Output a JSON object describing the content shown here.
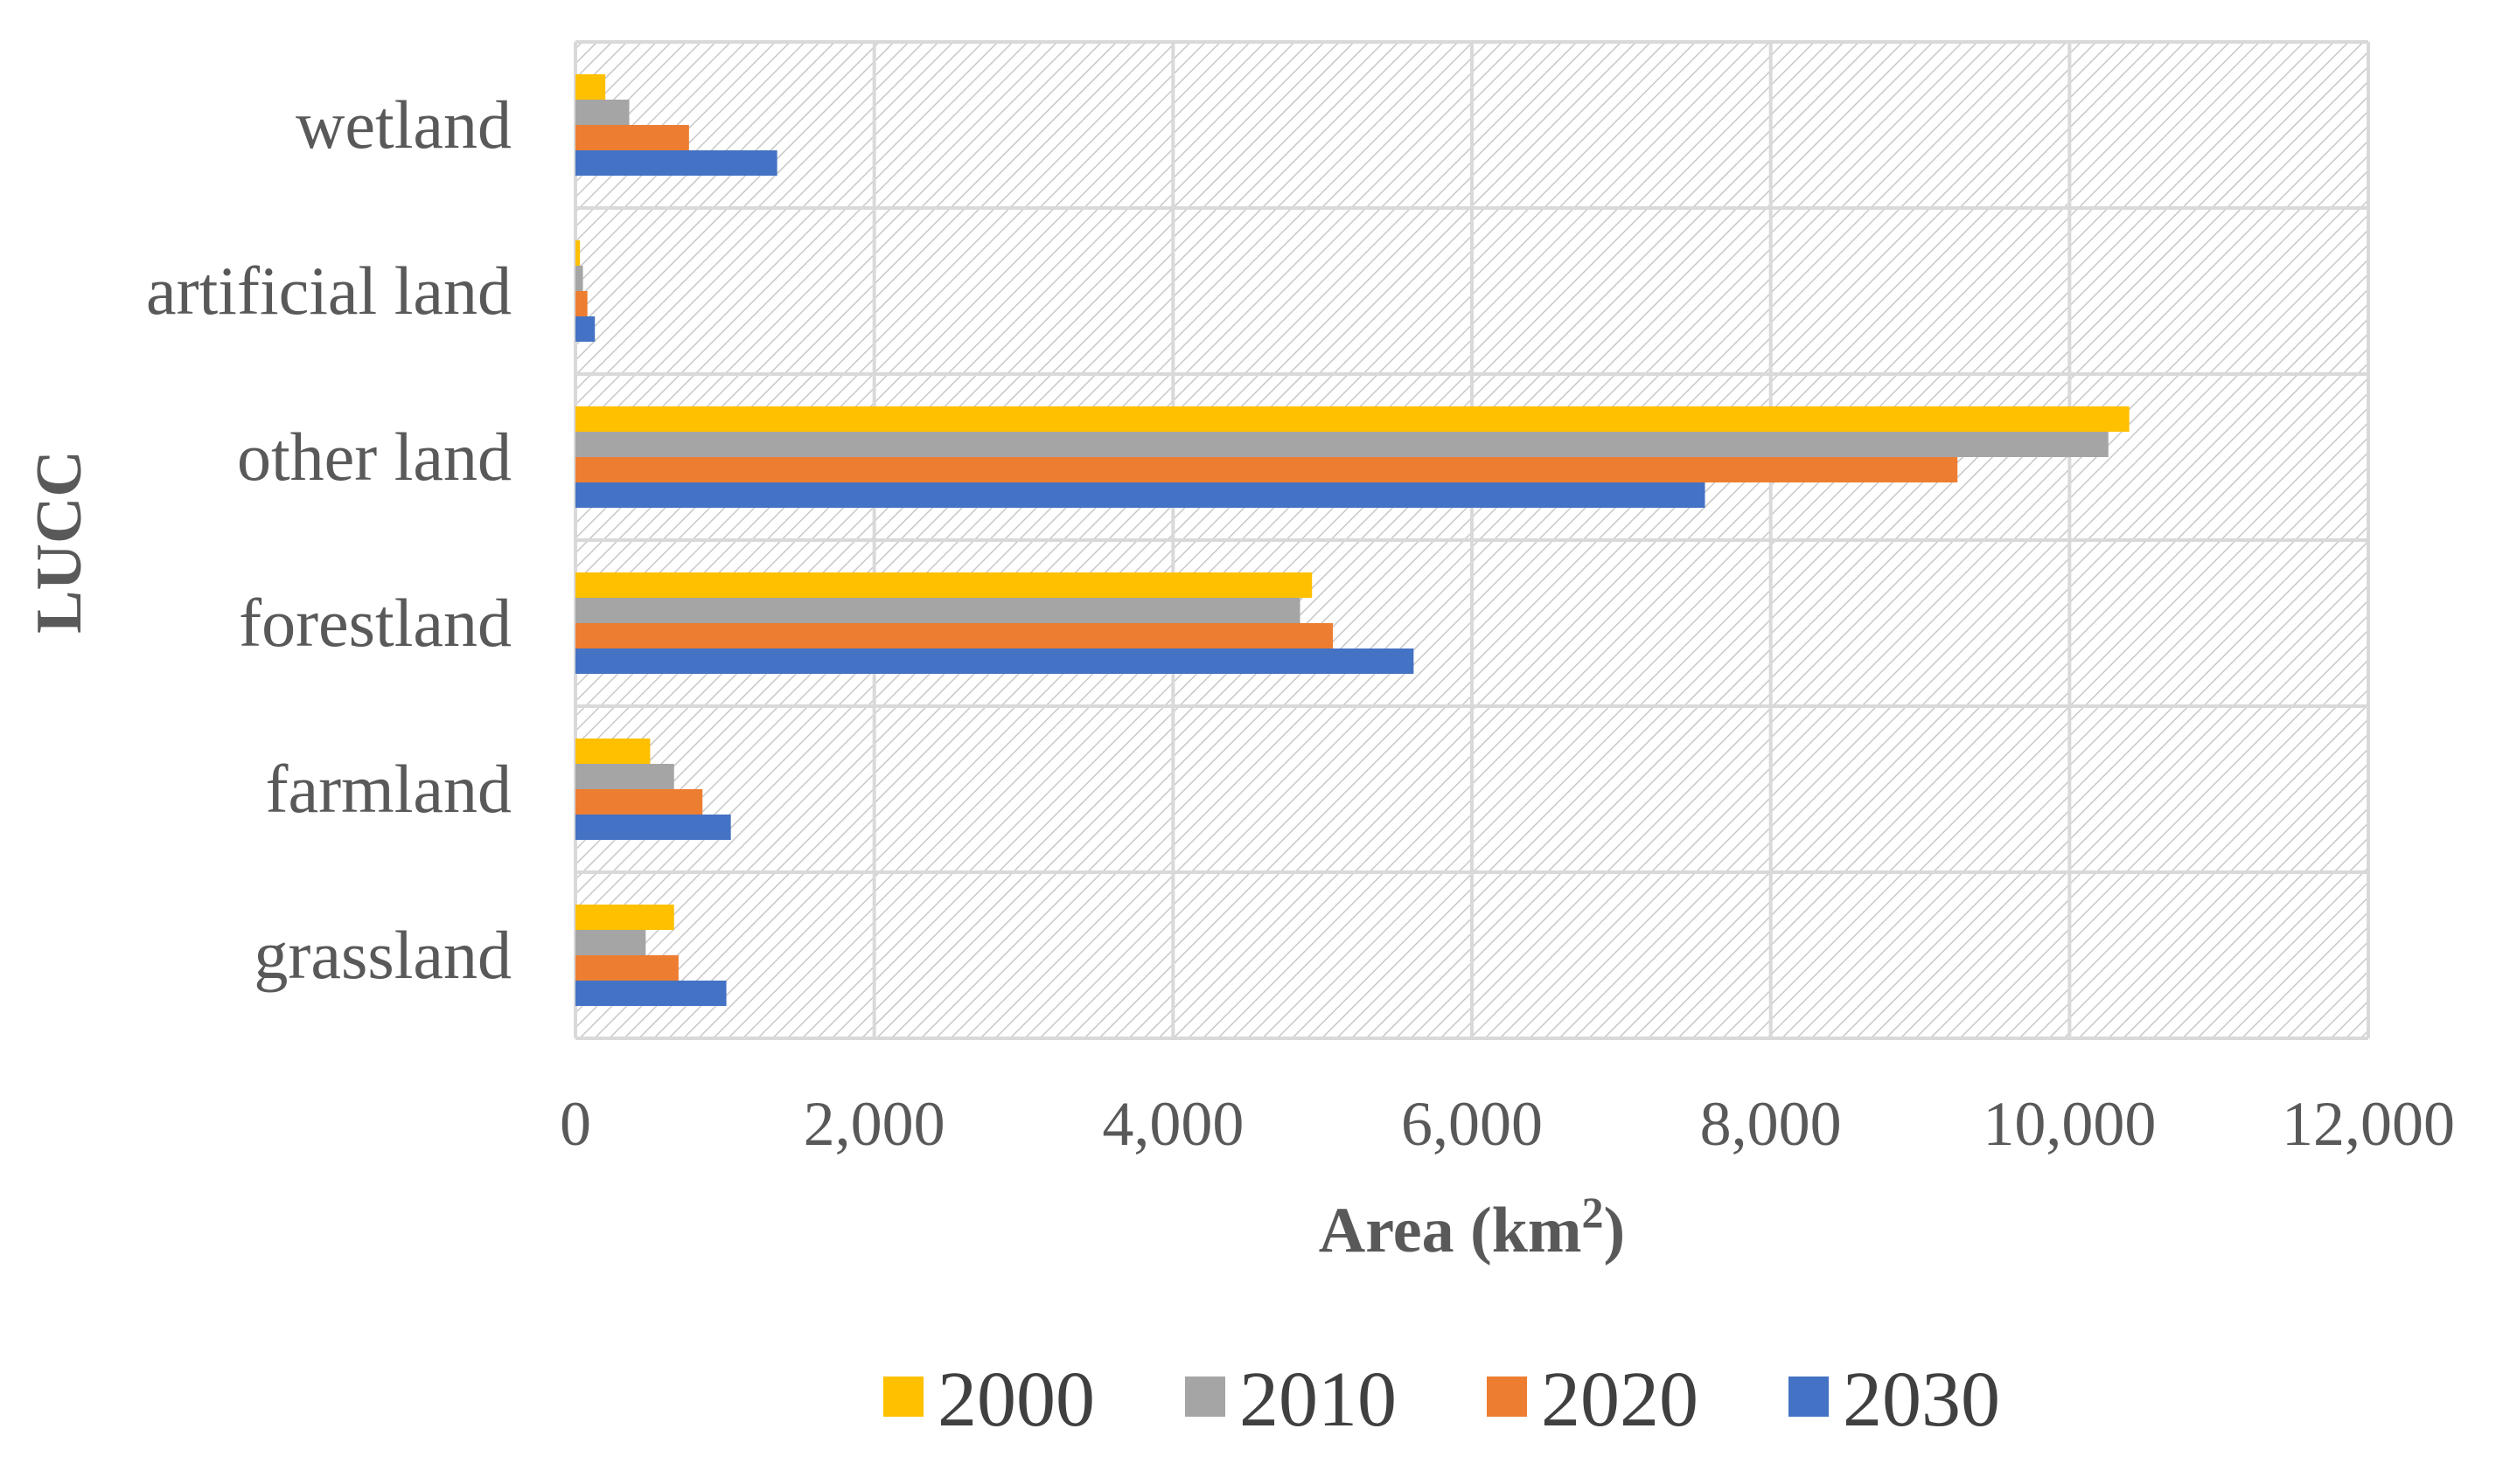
{
  "chart_data": {
    "type": "bar",
    "orientation": "horizontal",
    "title": "",
    "xlabel": "Area (km",
    "xlabel_superscript": "2",
    "xlabel_suffix": ")",
    "ylabel": "LUCC",
    "xlim": [
      0,
      12000
    ],
    "xticks": [
      0,
      2000,
      4000,
      6000,
      8000,
      10000,
      12000
    ],
    "xtick_labels": [
      "0",
      "2,000",
      "4,000",
      "6,000",
      "8,000",
      "10,000",
      "12,000"
    ],
    "grid": true,
    "legend_position": "bottom",
    "categories": [
      "wetland",
      "artificial land",
      "other land",
      "forestland",
      "farmland",
      "grassland"
    ],
    "series": [
      {
        "name": "2000",
        "color": "#FFC000",
        "values": [
          200,
          30,
          10400,
          4930,
          500,
          660
        ]
      },
      {
        "name": "2010",
        "color": "#A5A5A5",
        "values": [
          360,
          50,
          10260,
          4850,
          660,
          470
        ]
      },
      {
        "name": "2020",
        "color": "#ED7D31",
        "values": [
          760,
          80,
          9250,
          5070,
          850,
          690
        ]
      },
      {
        "name": "2030",
        "color": "#4472C4",
        "values": [
          1350,
          130,
          7560,
          5610,
          1040,
          1010
        ]
      }
    ]
  }
}
